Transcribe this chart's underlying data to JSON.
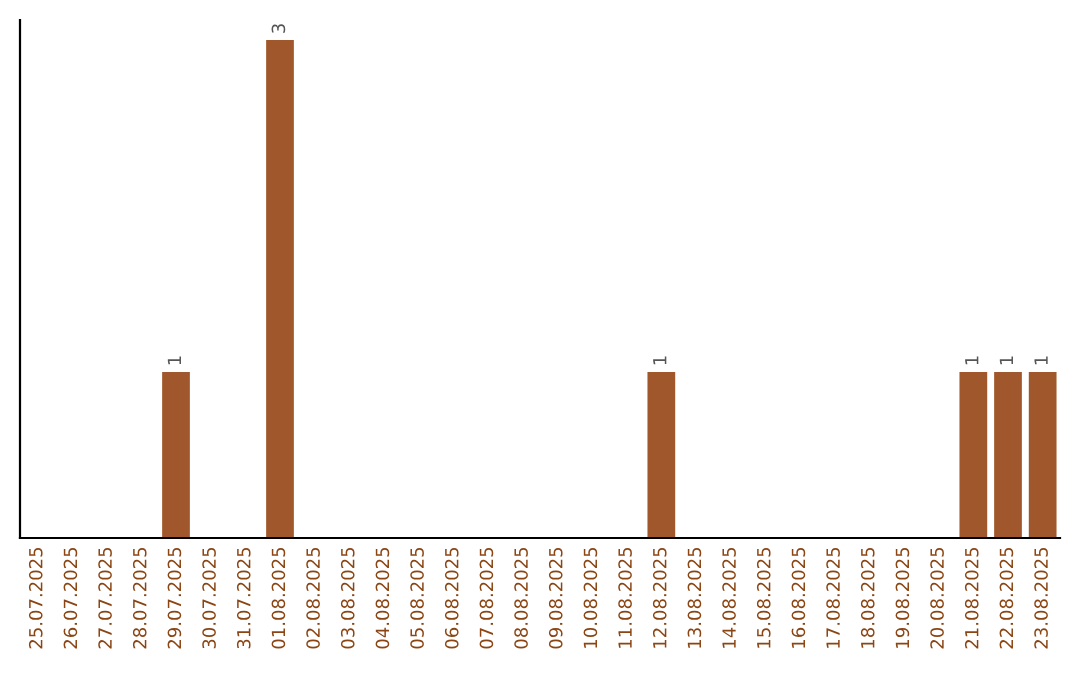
{
  "chart_data": {
    "type": "bar",
    "categories": [
      "25.07.2025",
      "26.07.2025",
      "27.07.2025",
      "28.07.2025",
      "29.07.2025",
      "30.07.2025",
      "31.07.2025",
      "01.08.2025",
      "02.08.2025",
      "03.08.2025",
      "04.08.2025",
      "05.08.2025",
      "06.08.2025",
      "07.08.2025",
      "08.08.2025",
      "09.08.2025",
      "10.08.2025",
      "11.08.2025",
      "12.08.2025",
      "13.08.2025",
      "14.08.2025",
      "15.08.2025",
      "16.08.2025",
      "17.08.2025",
      "18.08.2025",
      "19.08.2025",
      "20.08.2025",
      "21.08.2025",
      "22.08.2025",
      "23.08.2025"
    ],
    "values": [
      0,
      0,
      0,
      0,
      1,
      0,
      0,
      3,
      0,
      0,
      0,
      0,
      0,
      0,
      0,
      0,
      0,
      0,
      1,
      0,
      0,
      0,
      0,
      0,
      0,
      0,
      0,
      1,
      1,
      1
    ],
    "color": "#a0572b",
    "value_labels": [
      null,
      null,
      null,
      null,
      "1",
      null,
      null,
      "3",
      null,
      null,
      null,
      null,
      null,
      null,
      null,
      null,
      null,
      null,
      "1",
      null,
      null,
      null,
      null,
      null,
      null,
      null,
      null,
      "1",
      "1",
      "1"
    ],
    "grid": false,
    "tick_labels": "x"
  }
}
